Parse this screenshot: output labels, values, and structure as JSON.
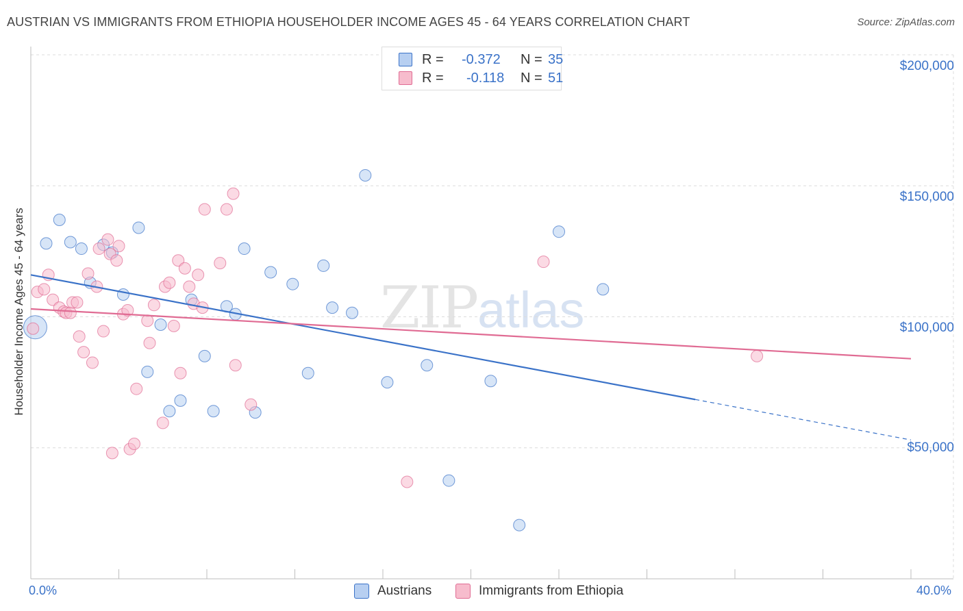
{
  "title": "AUSTRIAN VS IMMIGRANTS FROM ETHIOPIA HOUSEHOLDER INCOME AGES 45 - 64 YEARS CORRELATION CHART",
  "source": "Source: ZipAtlas.com",
  "watermark": {
    "zip": "ZIP",
    "atlas": "atlas"
  },
  "colors": {
    "austrians": "#3a72c8",
    "austrians_fill": "#b7cff1",
    "ethiopia": "#e06b93",
    "ethiopia_fill": "#f7bccd",
    "axis_text": "#3a72c8"
  },
  "stats": [
    {
      "r_label": "R =",
      "r_value": "-0.372",
      "n_label": "N =",
      "n_value": "35"
    },
    {
      "r_label": "R =",
      "r_value": "-0.118",
      "n_label": "N =",
      "n_value": "51"
    }
  ],
  "legend": {
    "austrians": "Austrians",
    "ethiopia": "Immigrants from Ethiopia"
  },
  "chart_data": {
    "type": "scatter",
    "title": "AUSTRIAN VS IMMIGRANTS FROM ETHIOPIA HOUSEHOLDER INCOME AGES 45 - 64 YEARS CORRELATION CHART",
    "xlabel": "",
    "ylabel": "Householder Income Ages 45 - 64 years",
    "xlim": [
      0,
      40
    ],
    "ylim": [
      0,
      210000
    ],
    "x_tick_labels": [
      "0.0%",
      "40.0%"
    ],
    "y_ticks": [
      {
        "value": 50000,
        "label": "$50,000"
      },
      {
        "value": 100000,
        "label": "$100,000"
      },
      {
        "value": 150000,
        "label": "$150,000"
      },
      {
        "value": 200000,
        "label": "$200,000"
      }
    ],
    "series": [
      {
        "name": "Austrians",
        "points": [
          {
            "x": 0.2,
            "y": 96000,
            "large": true
          },
          {
            "x": 0.7,
            "y": 128000
          },
          {
            "x": 1.3,
            "y": 137000
          },
          {
            "x": 1.8,
            "y": 128500
          },
          {
            "x": 2.3,
            "y": 126000
          },
          {
            "x": 2.7,
            "y": 113000
          },
          {
            "x": 3.3,
            "y": 127500
          },
          {
            "x": 3.7,
            "y": 124500
          },
          {
            "x": 4.2,
            "y": 108500
          },
          {
            "x": 4.9,
            "y": 134000
          },
          {
            "x": 5.3,
            "y": 79000
          },
          {
            "x": 5.9,
            "y": 97000
          },
          {
            "x": 6.3,
            "y": 64000
          },
          {
            "x": 6.8,
            "y": 68000
          },
          {
            "x": 7.3,
            "y": 106500
          },
          {
            "x": 7.9,
            "y": 85000
          },
          {
            "x": 8.3,
            "y": 64000
          },
          {
            "x": 8.9,
            "y": 104000
          },
          {
            "x": 9.3,
            "y": 101000
          },
          {
            "x": 9.7,
            "y": 126000
          },
          {
            "x": 10.2,
            "y": 63500
          },
          {
            "x": 10.9,
            "y": 117000
          },
          {
            "x": 11.9,
            "y": 112500
          },
          {
            "x": 12.6,
            "y": 78500
          },
          {
            "x": 13.3,
            "y": 119500
          },
          {
            "x": 13.7,
            "y": 103500
          },
          {
            "x": 14.6,
            "y": 101500
          },
          {
            "x": 15.2,
            "y": 154000
          },
          {
            "x": 16.2,
            "y": 75000
          },
          {
            "x": 18.0,
            "y": 81500
          },
          {
            "x": 19.0,
            "y": 37500
          },
          {
            "x": 20.9,
            "y": 75500
          },
          {
            "x": 22.2,
            "y": 20500
          },
          {
            "x": 24.0,
            "y": 132500
          },
          {
            "x": 26.0,
            "y": 110500
          }
        ],
        "trend": {
          "x0": 0,
          "y0": 116000,
          "x1": 40,
          "y1": 53000,
          "solid_until_x": 30.2
        }
      },
      {
        "name": "Immigrants from Ethiopia",
        "points": [
          {
            "x": 0.1,
            "y": 95500
          },
          {
            "x": 0.3,
            "y": 109500
          },
          {
            "x": 0.6,
            "y": 110500
          },
          {
            "x": 0.8,
            "y": 116000
          },
          {
            "x": 1.0,
            "y": 106500
          },
          {
            "x": 1.3,
            "y": 103500
          },
          {
            "x": 1.5,
            "y": 102000
          },
          {
            "x": 1.6,
            "y": 101500
          },
          {
            "x": 1.8,
            "y": 101500
          },
          {
            "x": 1.9,
            "y": 105500
          },
          {
            "x": 2.1,
            "y": 105500
          },
          {
            "x": 2.2,
            "y": 92500
          },
          {
            "x": 2.4,
            "y": 86500
          },
          {
            "x": 2.6,
            "y": 116500
          },
          {
            "x": 2.8,
            "y": 82500
          },
          {
            "x": 3.0,
            "y": 111500
          },
          {
            "x": 3.1,
            "y": 126000
          },
          {
            "x": 3.3,
            "y": 94500
          },
          {
            "x": 3.5,
            "y": 129500
          },
          {
            "x": 3.6,
            "y": 124000
          },
          {
            "x": 3.7,
            "y": 48000
          },
          {
            "x": 3.9,
            "y": 121500
          },
          {
            "x": 4.0,
            "y": 127000
          },
          {
            "x": 4.2,
            "y": 101000
          },
          {
            "x": 4.4,
            "y": 102500
          },
          {
            "x": 4.5,
            "y": 49500
          },
          {
            "x": 4.7,
            "y": 51500
          },
          {
            "x": 4.8,
            "y": 72500
          },
          {
            "x": 5.3,
            "y": 98500
          },
          {
            "x": 5.4,
            "y": 90000
          },
          {
            "x": 5.6,
            "y": 104500
          },
          {
            "x": 6.0,
            "y": 59500
          },
          {
            "x": 6.1,
            "y": 111500
          },
          {
            "x": 6.3,
            "y": 113000
          },
          {
            "x": 6.5,
            "y": 96500
          },
          {
            "x": 6.7,
            "y": 121500
          },
          {
            "x": 6.8,
            "y": 78500
          },
          {
            "x": 7.0,
            "y": 118500
          },
          {
            "x": 7.2,
            "y": 111500
          },
          {
            "x": 7.4,
            "y": 105000
          },
          {
            "x": 7.6,
            "y": 116000
          },
          {
            "x": 7.8,
            "y": 103500
          },
          {
            "x": 7.9,
            "y": 141000
          },
          {
            "x": 8.6,
            "y": 120500
          },
          {
            "x": 8.9,
            "y": 141000
          },
          {
            "x": 9.2,
            "y": 147000
          },
          {
            "x": 9.3,
            "y": 81500
          },
          {
            "x": 10.0,
            "y": 66500
          },
          {
            "x": 17.1,
            "y": 37000
          },
          {
            "x": 23.3,
            "y": 121000
          },
          {
            "x": 33.0,
            "y": 85000
          }
        ],
        "trend": {
          "x0": 0,
          "y0": 103000,
          "x1": 40,
          "y1": 84000
        }
      }
    ]
  }
}
